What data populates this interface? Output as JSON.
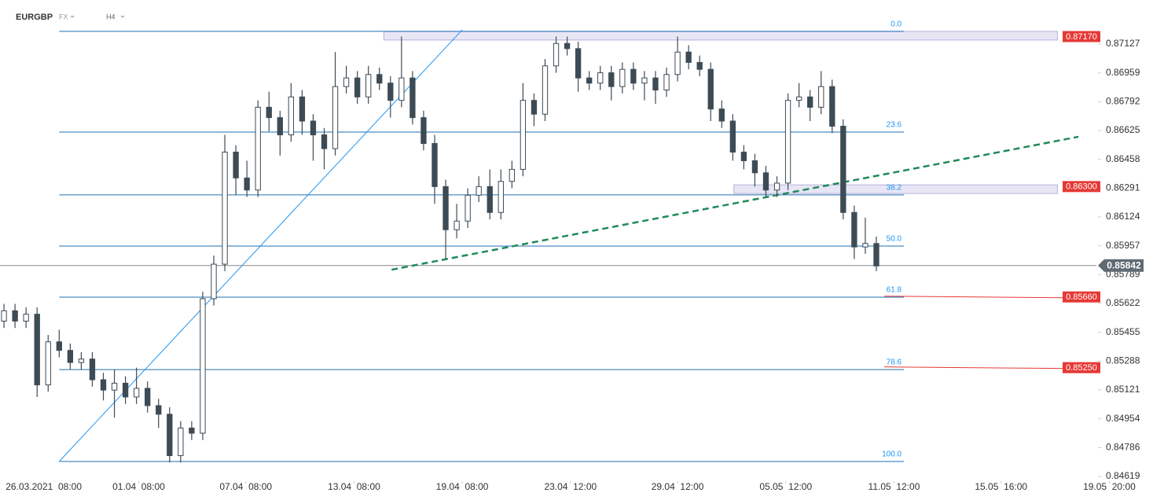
{
  "chart_data": {
    "type": "candlestick",
    "symbol": "EURGBP",
    "market": "FX",
    "timeframe": "H4",
    "open": [
      0.8552,
      0.8558,
      0.8552,
      0.8556,
      0.8515,
      0.854,
      0.8535,
      0.8528,
      0.853,
      0.8518,
      0.8512,
      0.8516,
      0.8508,
      0.8513,
      0.8503,
      0.8498,
      0.8474,
      0.849,
      0.8487,
      0.8565,
      0.8585,
      0.865,
      0.8635,
      0.8628,
      0.8676,
      0.867,
      0.866,
      0.8682,
      0.8668,
      0.866,
      0.8652,
      0.8688,
      0.8693,
      0.8682,
      0.8695,
      0.869,
      0.868,
      0.8693,
      0.867,
      0.8655,
      0.863,
      0.8605,
      0.861,
      0.8625,
      0.863,
      0.8615,
      0.8633,
      0.864,
      0.868,
      0.8672,
      0.87,
      0.8713,
      0.871,
      0.8693,
      0.869,
      0.8696,
      0.8688,
      0.8698,
      0.869,
      0.8693,
      0.8686,
      0.8695,
      0.8708,
      0.8702,
      0.8698,
      0.8675,
      0.8668,
      0.865,
      0.8645,
      0.8638,
      0.8628,
      0.8632,
      0.868,
      0.8682,
      0.8676,
      0.8688,
      0.8665,
      0.8615,
      0.8595,
      0.8597
    ],
    "high": [
      0.8562,
      0.8562,
      0.856,
      0.856,
      0.8544,
      0.8547,
      0.8539,
      0.8534,
      0.8534,
      0.8522,
      0.8524,
      0.852,
      0.8525,
      0.8517,
      0.8507,
      0.8502,
      0.8494,
      0.8494,
      0.8569,
      0.859,
      0.866,
      0.8654,
      0.8645,
      0.868,
      0.8685,
      0.8674,
      0.869,
      0.8686,
      0.8672,
      0.8664,
      0.8708,
      0.87,
      0.8697,
      0.87,
      0.8699,
      0.8694,
      0.8717,
      0.8697,
      0.8674,
      0.866,
      0.8634,
      0.862,
      0.8629,
      0.8636,
      0.864,
      0.864,
      0.8645,
      0.869,
      0.8684,
      0.8704,
      0.8717,
      0.8717,
      0.8714,
      0.8697,
      0.87,
      0.87,
      0.8702,
      0.8702,
      0.8697,
      0.8697,
      0.8699,
      0.8717,
      0.8712,
      0.8706,
      0.8702,
      0.868,
      0.8672,
      0.8654,
      0.8649,
      0.8642,
      0.8636,
      0.8684,
      0.869,
      0.8686,
      0.8697,
      0.8692,
      0.8669,
      0.8619,
      0.8612,
      0.8601
    ],
    "low": [
      0.8548,
      0.8548,
      0.8548,
      0.8508,
      0.8511,
      0.8531,
      0.8524,
      0.8524,
      0.8514,
      0.8506,
      0.8496,
      0.8504,
      0.8504,
      0.8499,
      0.849,
      0.847,
      0.847,
      0.8483,
      0.8483,
      0.8561,
      0.8581,
      0.8625,
      0.8624,
      0.8624,
      0.8662,
      0.8648,
      0.8656,
      0.866,
      0.8645,
      0.864,
      0.8648,
      0.8684,
      0.8678,
      0.8678,
      0.8686,
      0.867,
      0.8676,
      0.8666,
      0.8651,
      0.862,
      0.8588,
      0.86,
      0.8606,
      0.8621,
      0.8611,
      0.8611,
      0.8629,
      0.8636,
      0.8665,
      0.8668,
      0.8696,
      0.8706,
      0.8685,
      0.8686,
      0.8686,
      0.868,
      0.8684,
      0.8686,
      0.868,
      0.8678,
      0.8682,
      0.8691,
      0.8698,
      0.8694,
      0.8668,
      0.8664,
      0.8645,
      0.864,
      0.863,
      0.8624,
      0.8624,
      0.8628,
      0.8676,
      0.8668,
      0.8672,
      0.8661,
      0.8611,
      0.8588,
      0.8591,
      0.8581
    ],
    "close": [
      0.8558,
      0.8552,
      0.8556,
      0.8515,
      0.854,
      0.8535,
      0.8528,
      0.853,
      0.8518,
      0.8512,
      0.8516,
      0.8508,
      0.8513,
      0.8503,
      0.8498,
      0.8474,
      0.849,
      0.8487,
      0.8565,
      0.8585,
      0.865,
      0.8635,
      0.8628,
      0.8676,
      0.867,
      0.866,
      0.8682,
      0.8668,
      0.866,
      0.8652,
      0.8688,
      0.8693,
      0.8682,
      0.8695,
      0.869,
      0.868,
      0.8693,
      0.867,
      0.8655,
      0.863,
      0.8605,
      0.861,
      0.8625,
      0.863,
      0.8615,
      0.8633,
      0.864,
      0.868,
      0.8672,
      0.87,
      0.8713,
      0.871,
      0.8693,
      0.869,
      0.8696,
      0.8688,
      0.8698,
      0.869,
      0.8693,
      0.8686,
      0.8695,
      0.8708,
      0.8702,
      0.8698,
      0.8675,
      0.8668,
      0.865,
      0.8645,
      0.8638,
      0.8628,
      0.8632,
      0.868,
      0.8682,
      0.8676,
      0.8688,
      0.8665,
      0.8615,
      0.8595,
      0.8597,
      0.8584
    ],
    "up_color": "#ffffff",
    "down_color": "#3d4b55",
    "xlim": [
      -0.36,
      98.93
    ],
    "xticks": [
      {
        "value": 3.6,
        "label": "26.03.2021  08:00"
      },
      {
        "value": 12.2,
        "label": "01.04  08:00"
      },
      {
        "value": 21.9,
        "label": "07.04  08:00"
      },
      {
        "value": 31.7,
        "label": "13.04  08:00"
      },
      {
        "value": 41.5,
        "label": "19.04  08:00"
      },
      {
        "value": 51.3,
        "label": "23.04  12:00"
      },
      {
        "value": 61.0,
        "label": "29.04  12:00"
      },
      {
        "value": 70.8,
        "label": "05.05  12:00"
      },
      {
        "value": 80.6,
        "label": "11.05  12:00"
      },
      {
        "value": 90.3,
        "label": "15.05  16:00"
      },
      {
        "value": 100.1,
        "label": "19.05  20:00"
      }
    ],
    "ylim": [
      0.84592,
      0.87382
    ],
    "yticks": [
      0.87127,
      0.86959,
      0.86792,
      0.86625,
      0.86458,
      0.86291,
      0.86124,
      0.85957,
      0.85789,
      0.85622,
      0.85455,
      0.85288,
      0.85121,
      0.84954,
      0.84786,
      0.84619
    ],
    "fib_x": [
      5,
      81.5
    ],
    "fib_color": "#1e6fb5",
    "fib_levels": [
      {
        "level": "0.0",
        "value": 0.872
      },
      {
        "level": "23.6",
        "value": 0.86616
      },
      {
        "level": "38.2",
        "value": 0.86252
      },
      {
        "level": "50.0",
        "value": 0.85955
      },
      {
        "level": "61.8",
        "value": 0.85659
      },
      {
        "level": "78.6",
        "value": 0.85239
      },
      {
        "level": "100.0",
        "value": 0.84706
      }
    ],
    "zones": [
      {
        "x": [
          34.4,
          95.4
        ],
        "y": [
          0.8715,
          0.872
        ]
      },
      {
        "x": [
          66.1,
          95.4
        ],
        "y": [
          0.8626,
          0.8631
        ]
      }
    ],
    "price_labels": [
      {
        "value": 0.8717,
        "label": "0.87170",
        "line": false
      },
      {
        "value": 0.863,
        "label": "0.86300",
        "line": false
      },
      {
        "value": 0.8566,
        "label": "0.85660",
        "line": true
      },
      {
        "value": 0.8525,
        "label": "0.85250",
        "line": true
      }
    ],
    "price_label_color": "#e53935",
    "current_price": 0.85842,
    "trendlines": [
      {
        "x": [
          5.0,
          41.5
        ],
        "y": [
          0.84706,
          0.87209
        ],
        "color": "#2196f3",
        "dashed": false
      },
      {
        "x": [
          35.1,
          97.3
        ],
        "y": [
          0.85818,
          0.86589
        ],
        "color": "#1e8a5a",
        "dashed": true
      }
    ]
  }
}
